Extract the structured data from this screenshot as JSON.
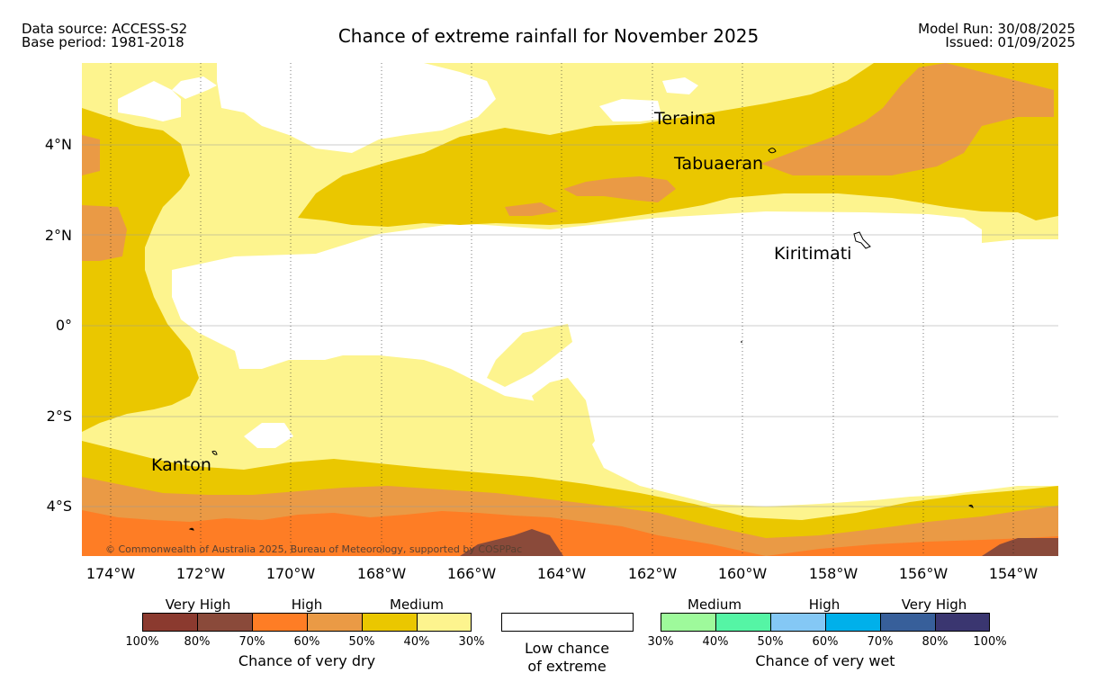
{
  "header": {
    "data_source": "Data source: ACCESS-S2",
    "base_period": "Base period: 1981-2018",
    "title": "Chance of extreme rainfall for November 2025",
    "model_run": "Model Run: 30/08/2025",
    "issued": "Issued: 01/09/2025"
  },
  "map": {
    "lat_labels": [
      "4°N",
      "2°N",
      "0°",
      "2°S",
      "4°S"
    ],
    "lon_labels": [
      "174°W",
      "172°W",
      "170°W",
      "168°W",
      "166°W",
      "164°W",
      "162°W",
      "160°W",
      "158°W",
      "156°W",
      "154°W"
    ],
    "place_names": {
      "teraina": "Teraina",
      "tabuaeran": "Tabuaeran",
      "kiritimati": "Kiritimati",
      "kanton": "Kanton"
    },
    "copyright": "© Commonwealth of Australia 2025, Bureau of Meteorology, supported by COSPPac",
    "colors": {
      "dry_very_high_1": "#8b3a2f",
      "dry_very_high_2": "#8a4a3a",
      "dry_high_1": "#fe7d25",
      "dry_high_2": "#ea9a45",
      "dry_medium_1": "#eac700",
      "dry_medium_2": "#fdf48e",
      "low": "#ffffff",
      "wet_medium_1": "#9efa9b",
      "wet_medium_2": "#55f5a5",
      "wet_high_1": "#84c8f5",
      "wet_high_2": "#00b0ea",
      "wet_very_high_1": "#375f9a",
      "wet_very_high_2": "#3a3670"
    }
  },
  "legend": {
    "dry": {
      "categories": [
        "Very High",
        "High",
        "Medium"
      ],
      "ticks": [
        "100%",
        "80%",
        "70%",
        "60%",
        "50%",
        "40%",
        "30%"
      ],
      "caption": "Chance of very dry"
    },
    "low": {
      "caption_line1": "Low chance",
      "caption_line2": "of extreme"
    },
    "wet": {
      "categories": [
        "Medium",
        "High",
        "Very High"
      ],
      "ticks": [
        "30%",
        "40%",
        "50%",
        "60%",
        "70%",
        "80%",
        "100%"
      ],
      "caption": "Chance of very wet"
    }
  }
}
